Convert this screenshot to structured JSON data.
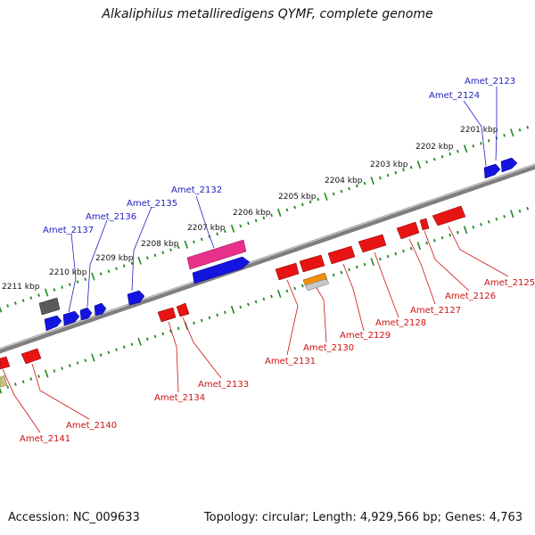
{
  "title": "Alkaliphilus metalliredigens QYMF, complete genome",
  "footer": {
    "accession": "Accession: NC_009633",
    "summary": "Topology: circular; Length: 4,929,566 bp; Genes: 4,763"
  },
  "colors": {
    "backbone": "#8a8a8a",
    "ticks": "#1e8a1e",
    "forward_label": "#2020c0",
    "reverse_label": "#d01010",
    "forward_gene": "#1010e0",
    "reverse_gene": "#e01010",
    "rrna": "#e0307a",
    "pseudo": "#606060",
    "trna": "#e08a10",
    "other": "#c8c080"
  },
  "tick_labels": [
    "2201 kbp",
    "2202 kbp",
    "2203 kbp",
    "2204 kbp",
    "2205 kbp",
    "2206 kbp",
    "2207 kbp",
    "2208 kbp",
    "2209 kbp",
    "2210 kbp",
    "2211 kbp"
  ],
  "forward_labels": [
    "Amet_2123",
    "Amet_2124",
    "Amet_2132",
    "Amet_2135",
    "Amet_2136",
    "Amet_2137"
  ],
  "reverse_labels": [
    "Amet_2125",
    "Amet_2126",
    "Amet_2127",
    "Amet_2128",
    "Amet_2129",
    "Amet_2130",
    "Amet_2131",
    "Amet_2133",
    "Amet_2134",
    "Amet_2140",
    "Amet_2141"
  ]
}
